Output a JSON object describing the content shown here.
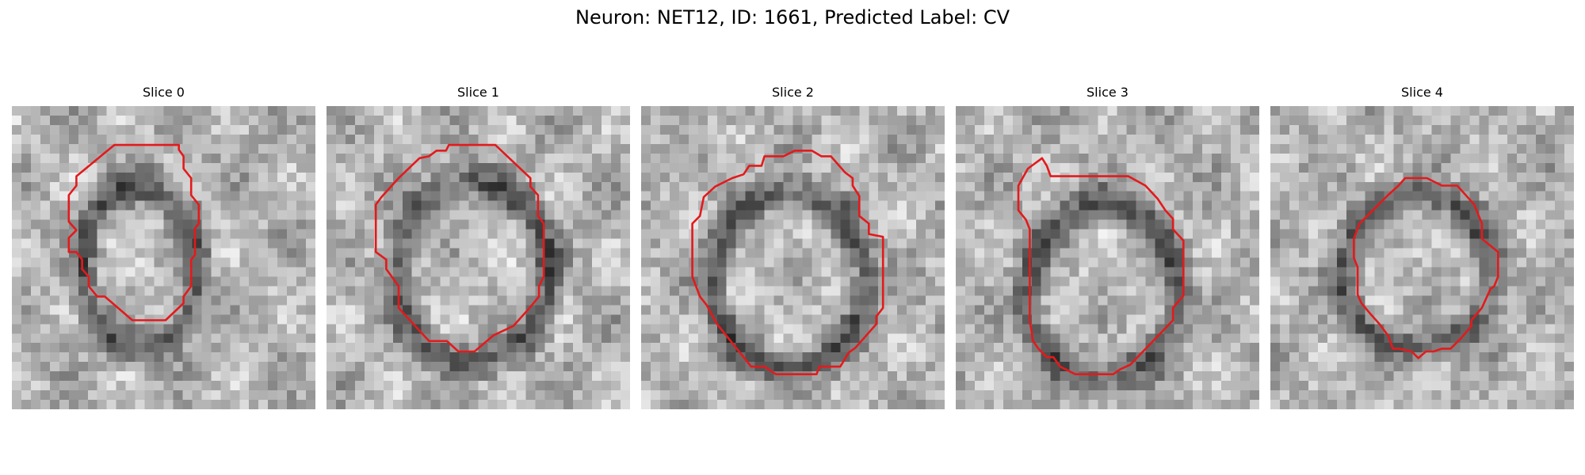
{
  "figure": {
    "title": "Neuron: NET12, ID: 1661, Predicted Label: CV"
  },
  "panels": [
    {
      "title": "Slice 0",
      "contour_color": "#e31a1c"
    },
    {
      "title": "Slice 1",
      "contour_color": "#e31a1c"
    },
    {
      "title": "Slice 2",
      "contour_color": "#e31a1c"
    },
    {
      "title": "Slice 3",
      "contour_color": "#e31a1c"
    },
    {
      "title": "Slice 4",
      "contour_color": "#e31a1c"
    }
  ]
}
